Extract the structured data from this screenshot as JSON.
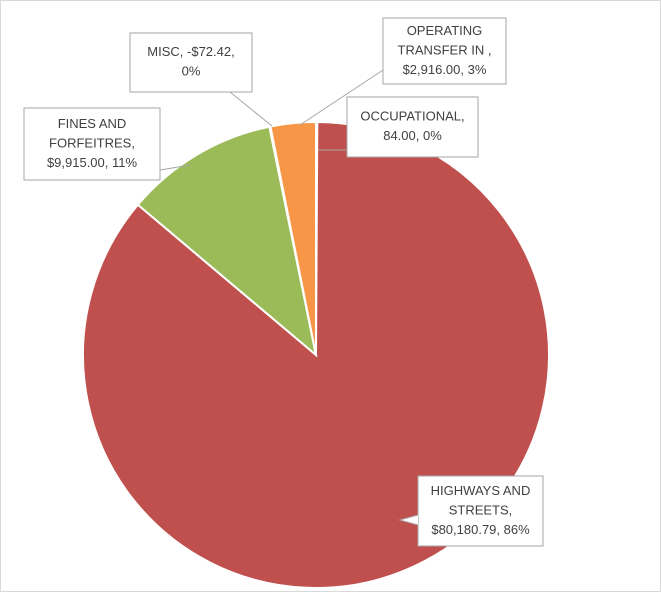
{
  "chart_data": {
    "type": "pie",
    "labels": [
      [
        "OCCUPATIONAL,",
        "84.00, 0%"
      ],
      [
        "HIGHWAYS AND",
        "STREETS,",
        "$80,180.79, 86%"
      ],
      [
        "FINES AND",
        "FORFEITRES,",
        "$9,915.00, 11%"
      ],
      [
        "MISC, -$72.42,",
        "0%"
      ],
      [
        "OPERATING",
        "TRANSFER IN ,",
        "$2,916.00, 3%"
      ]
    ],
    "values": [
      84.0,
      80180.79,
      9915.0,
      -72.42,
      2916.0
    ],
    "percentages": [
      0,
      86,
      11,
      0,
      3
    ],
    "colors": [
      "#4f81bd",
      "#c0504d",
      "#9bbb59",
      "#8064a2",
      "#f79646"
    ]
  }
}
